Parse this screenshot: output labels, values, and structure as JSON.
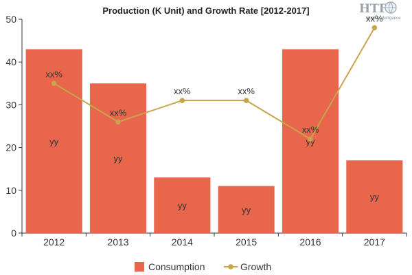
{
  "logo": {
    "mark": "HTF",
    "tagline": "Market Intelligence"
  },
  "chart_data": {
    "type": "bar",
    "title": "Production (K Unit) and Growth Rate [2012-2017]",
    "categories": [
      "2012",
      "2013",
      "2014",
      "2015",
      "2016",
      "2017"
    ],
    "ylim": [
      0,
      50
    ],
    "y_ticks": [
      0,
      10,
      20,
      30,
      40,
      50
    ],
    "grid": false,
    "legend_position": "bottom",
    "series": [
      {
        "name": "Consumption",
        "type": "bar",
        "color": "#E8664C",
        "values": [
          43,
          35,
          13,
          11,
          43,
          17
        ],
        "data_labels": [
          "yy",
          "yy",
          "yy",
          "yy",
          "yy",
          "yy"
        ]
      },
      {
        "name": "Growth",
        "type": "line",
        "color": "#C9A44B",
        "values": [
          35,
          26,
          31,
          31,
          22,
          48
        ],
        "data_labels": [
          "xx%",
          "xx%",
          "xx%",
          "xx%",
          "xx%",
          "xx%"
        ]
      }
    ]
  }
}
